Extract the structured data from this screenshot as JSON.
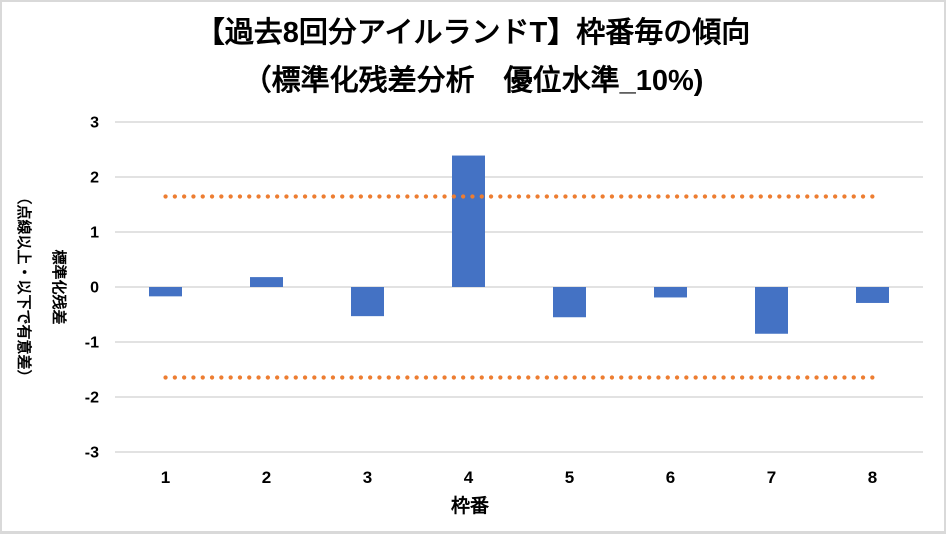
{
  "title": {
    "line1": "【過去8回分アイルランドT】枠番毎の傾向",
    "line2": "（標準化残差分析　優位水準_10%)"
  },
  "chart_data": {
    "type": "bar",
    "title": "【過去8回分アイルランドT】枠番毎の傾向（標準化残差分析　優位水準_10%)",
    "categories": [
      "1",
      "2",
      "3",
      "4",
      "5",
      "6",
      "7",
      "8"
    ],
    "values": [
      -0.17,
      0.18,
      -0.53,
      2.39,
      -0.55,
      -0.19,
      -0.85,
      -0.29
    ],
    "bar_color": "#4472C4",
    "thresholds": {
      "upper": 1.645,
      "lower": -1.645,
      "color": "#ED7D31",
      "line_style": "round-dot"
    },
    "xlabel": "枠番",
    "ylabel": "標準化残差",
    "ylabel_note": "（点線以上・以下で有意差）",
    "ylim": [
      -3,
      3
    ],
    "yticks": [
      "3",
      "2",
      "1",
      "0",
      "-1",
      "-2",
      "-3"
    ],
    "grid": true,
    "gridline_color": "#d9d9d9",
    "legend": "none",
    "plot_background": "#ffffff"
  }
}
